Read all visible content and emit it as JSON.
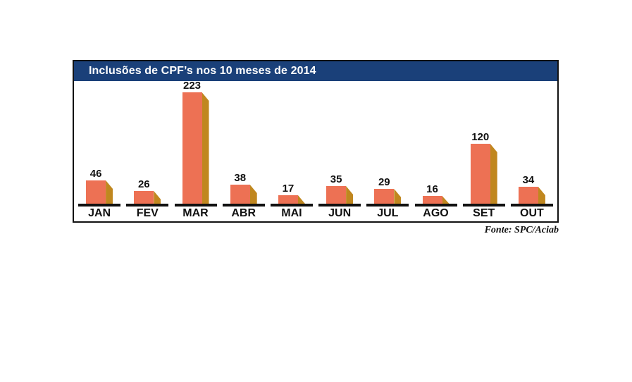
{
  "page": {
    "background_color": "#ffffff"
  },
  "chart": {
    "header_bg_color": "#1A4079",
    "title_text_color": "#ffffff",
    "border_color": "#121212",
    "baseline_color": "#111111"
  },
  "chart_data": {
    "type": "bar",
    "title": "Inclusões de CPF’s nos 10 meses de 2014",
    "categories": [
      "JAN",
      "FEV",
      "MAR",
      "ABR",
      "MAI",
      "JUN",
      "JUL",
      "AGO",
      "SET",
      "OUT"
    ],
    "values": [
      46,
      26,
      223,
      38,
      17,
      35,
      29,
      16,
      120,
      34
    ],
    "xlabel": "",
    "ylabel": "",
    "ylim": [
      0,
      223
    ],
    "grid": false,
    "legend": false,
    "value_labels": true,
    "bar_style": "3d-beveled",
    "bar_front_color": "#ED7154",
    "bar_side_color": "#C0871F",
    "source": "Fonte: SPC/Aciab"
  }
}
